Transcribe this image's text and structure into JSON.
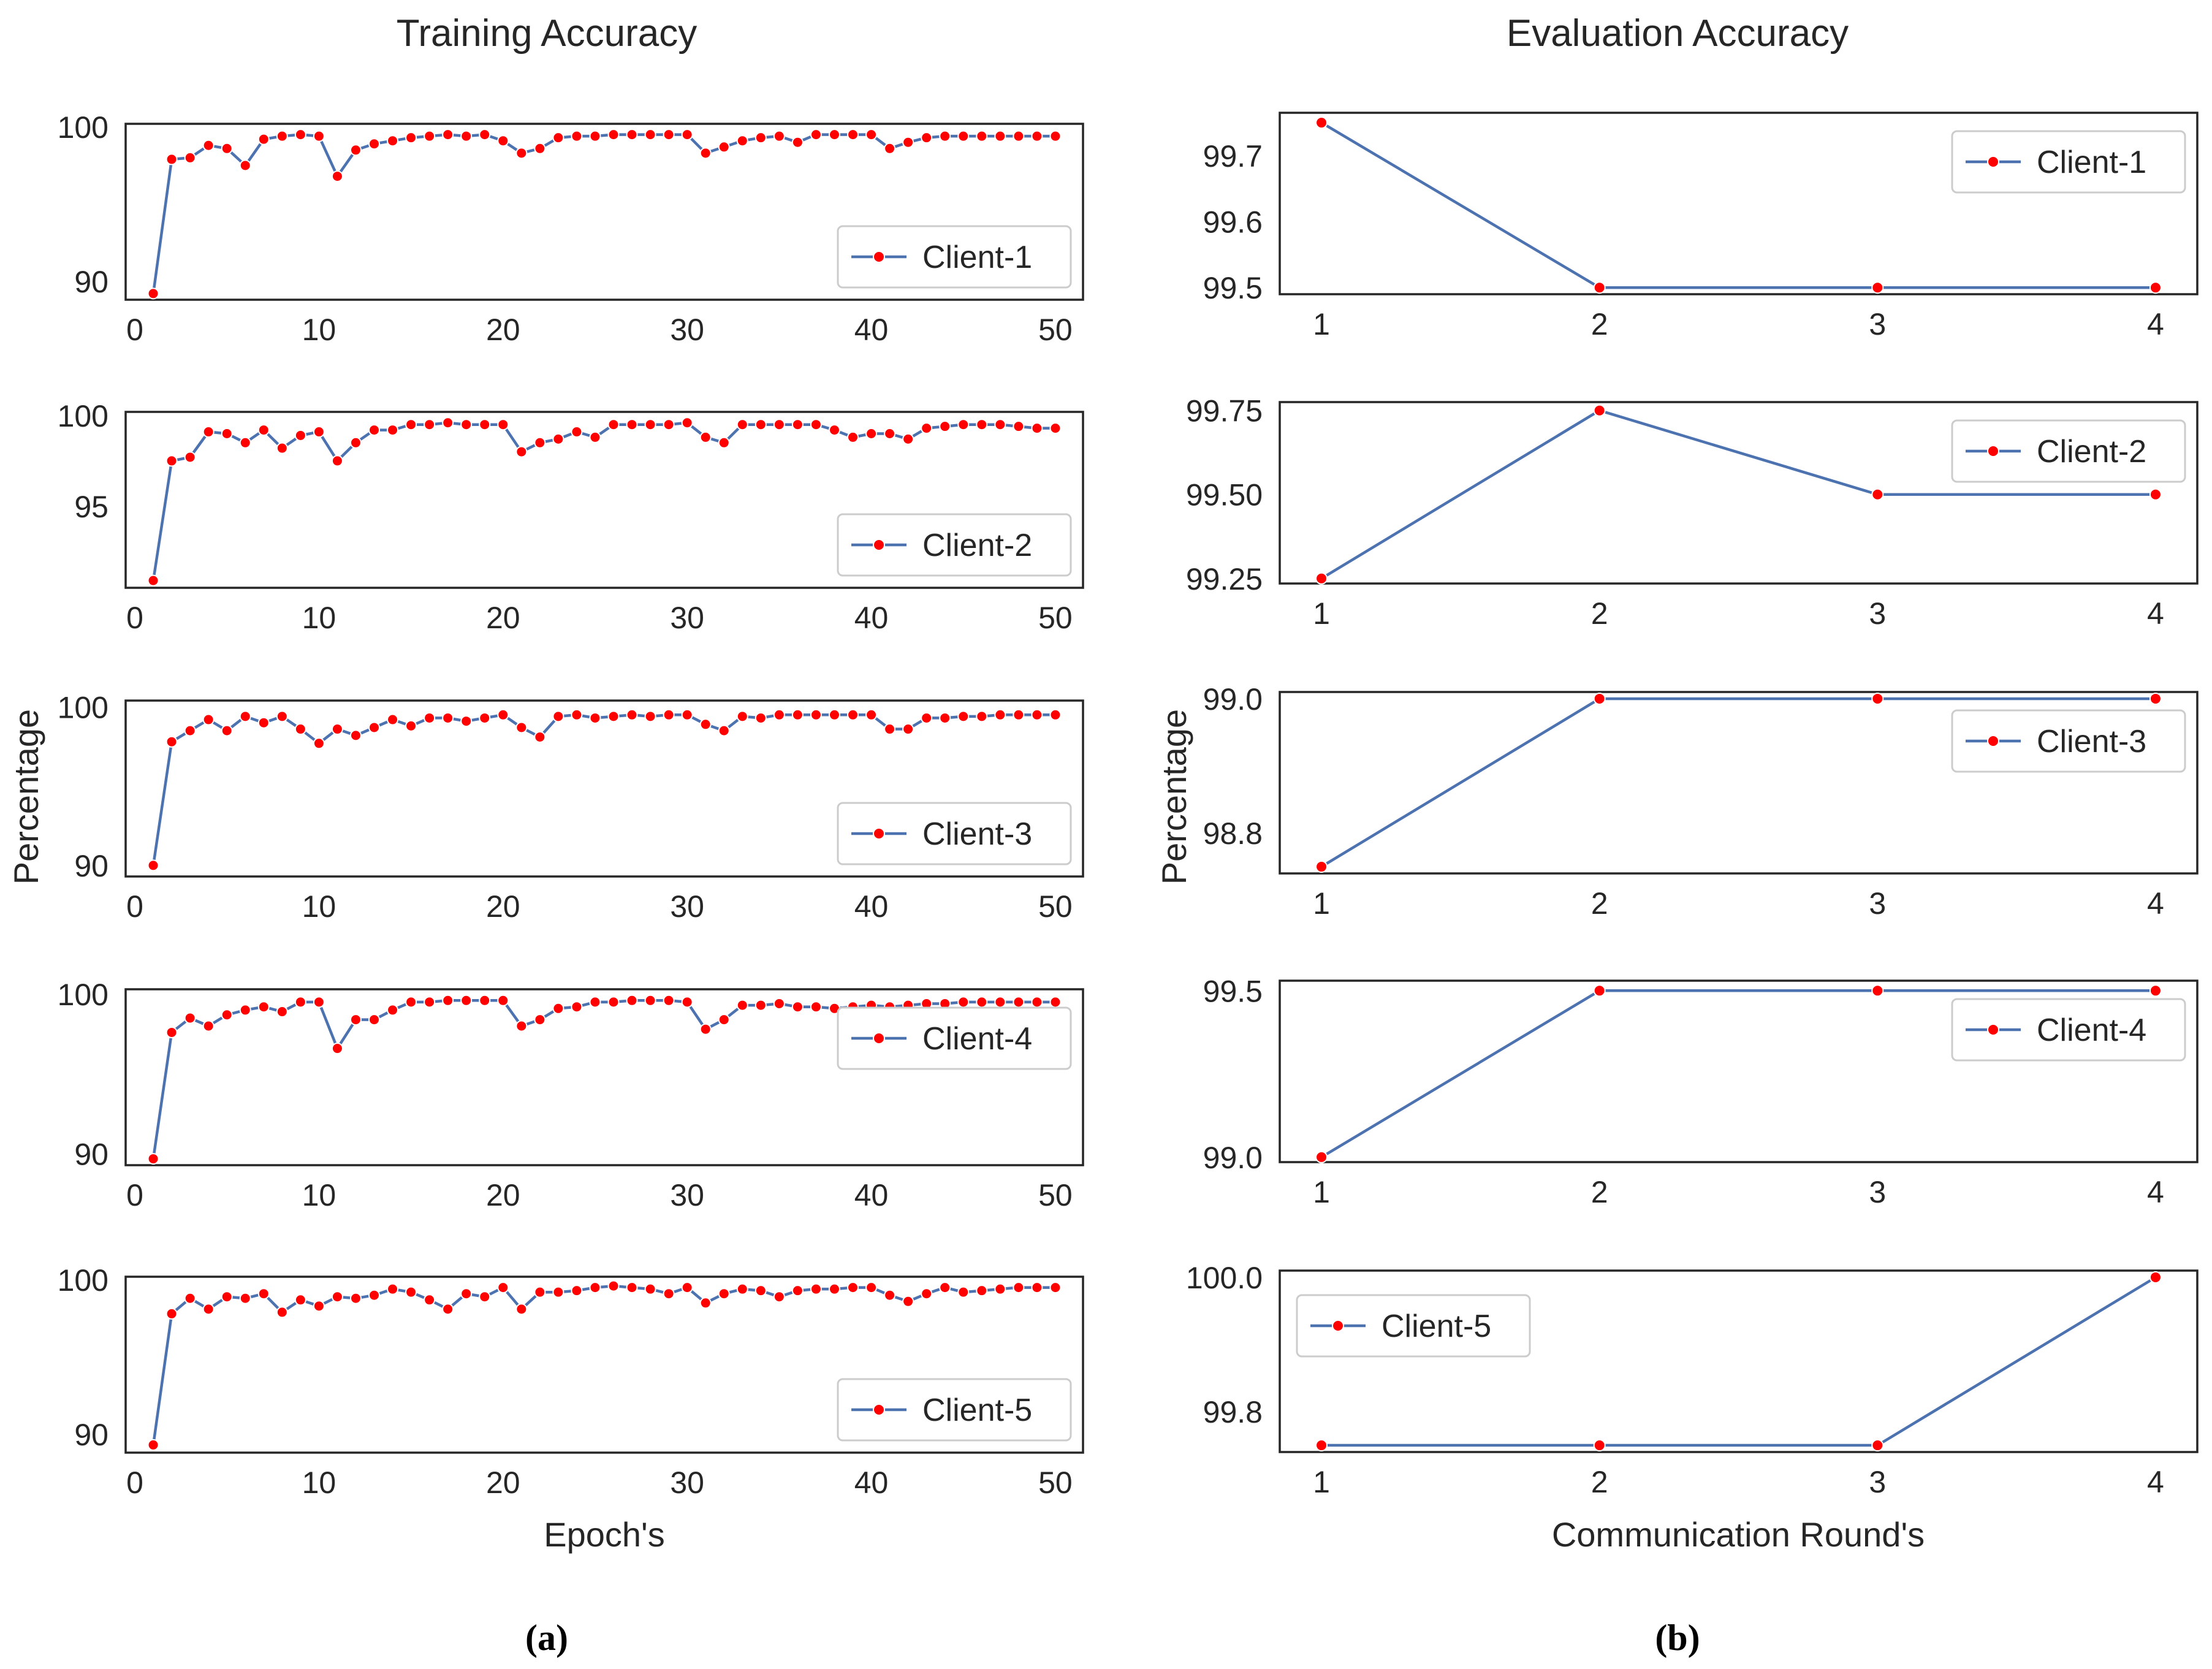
{
  "panel_labels": [
    "(a)",
    "(b)"
  ],
  "colors": {
    "line": "#4c72b0",
    "marker": "#ff0000",
    "frame": "#262626",
    "legend_border": "#cccccc"
  },
  "chart_data": [
    {
      "type": "line",
      "title": "Training Accuracy",
      "xlabel": "Epoch's",
      "ylabel": "Percentage",
      "subplots": [
        {
          "name": "Client-1",
          "x": [
            1,
            2,
            3,
            4,
            5,
            6,
            7,
            8,
            9,
            10,
            11,
            12,
            13,
            14,
            15,
            16,
            17,
            18,
            19,
            20,
            21,
            22,
            23,
            24,
            25,
            26,
            27,
            28,
            29,
            30,
            31,
            32,
            33,
            34,
            35,
            36,
            37,
            38,
            39,
            40,
            41,
            42,
            43,
            44,
            45,
            46,
            47,
            48,
            49,
            50
          ],
          "values": [
            89.2,
            97.9,
            98.0,
            98.8,
            98.6,
            97.5,
            99.2,
            99.4,
            99.5,
            99.4,
            96.8,
            98.5,
            98.9,
            99.1,
            99.3,
            99.4,
            99.5,
            99.4,
            99.5,
            99.1,
            98.3,
            98.6,
            99.3,
            99.4,
            99.4,
            99.5,
            99.5,
            99.5,
            99.5,
            99.5,
            98.3,
            98.7,
            99.1,
            99.3,
            99.4,
            99.0,
            99.5,
            99.5,
            99.5,
            99.5,
            98.6,
            99.0,
            99.3,
            99.4,
            99.4,
            99.4,
            99.4,
            99.4,
            99.4,
            99.4
          ],
          "ylim": [
            88.8,
            100.2
          ],
          "yticks": [
            90,
            100
          ],
          "xticks": [
            0,
            10,
            20,
            30,
            40,
            50
          ],
          "xlim": [
            -0.5,
            51.5
          ],
          "legend": "lower-right"
        },
        {
          "name": "Client-2",
          "x": [
            1,
            2,
            3,
            4,
            5,
            6,
            7,
            8,
            9,
            10,
            11,
            12,
            13,
            14,
            15,
            16,
            17,
            18,
            19,
            20,
            21,
            22,
            23,
            24,
            25,
            26,
            27,
            28,
            29,
            30,
            31,
            32,
            33,
            34,
            35,
            36,
            37,
            38,
            39,
            40,
            41,
            42,
            43,
            44,
            45,
            46,
            47,
            48,
            49,
            50
          ],
          "values": [
            90.9,
            97.5,
            97.7,
            99.1,
            99.0,
            98.5,
            99.2,
            98.2,
            98.9,
            99.1,
            97.5,
            98.5,
            99.2,
            99.2,
            99.5,
            99.5,
            99.6,
            99.5,
            99.5,
            99.5,
            98.0,
            98.5,
            98.7,
            99.1,
            98.8,
            99.5,
            99.5,
            99.5,
            99.5,
            99.6,
            98.8,
            98.5,
            99.5,
            99.5,
            99.5,
            99.5,
            99.5,
            99.2,
            98.8,
            99.0,
            99.0,
            98.7,
            99.3,
            99.4,
            99.5,
            99.5,
            99.5,
            99.4,
            99.3,
            99.3
          ],
          "ylim": [
            90.5,
            100.2
          ],
          "yticks": [
            95,
            100
          ],
          "xticks": [
            0,
            10,
            20,
            30,
            40,
            50
          ],
          "xlim": [
            -0.5,
            51.5
          ],
          "legend": "lower-right"
        },
        {
          "name": "Client-3",
          "x": [
            1,
            2,
            3,
            4,
            5,
            6,
            7,
            8,
            9,
            10,
            11,
            12,
            13,
            14,
            15,
            16,
            17,
            18,
            19,
            20,
            21,
            22,
            23,
            24,
            25,
            26,
            27,
            28,
            29,
            30,
            31,
            32,
            33,
            34,
            35,
            36,
            37,
            38,
            39,
            40,
            41,
            42,
            43,
            44,
            45,
            46,
            47,
            48,
            49,
            50
          ],
          "values": [
            90.0,
            97.8,
            98.5,
            99.2,
            98.5,
            99.4,
            99.0,
            99.4,
            98.6,
            97.7,
            98.6,
            98.2,
            98.7,
            99.2,
            98.8,
            99.3,
            99.3,
            99.1,
            99.3,
            99.5,
            98.7,
            98.1,
            99.4,
            99.5,
            99.3,
            99.4,
            99.5,
            99.4,
            99.5,
            99.5,
            98.9,
            98.5,
            99.4,
            99.3,
            99.5,
            99.5,
            99.5,
            99.5,
            99.5,
            99.5,
            98.6,
            98.6,
            99.3,
            99.3,
            99.4,
            99.4,
            99.5,
            99.5,
            99.5,
            99.5
          ],
          "ylim": [
            89.3,
            100.4
          ],
          "yticks": [
            90,
            100
          ],
          "xticks": [
            0,
            10,
            20,
            30,
            40,
            50
          ],
          "xlim": [
            -0.5,
            51.5
          ],
          "legend": "lower-right"
        },
        {
          "name": "Client-4",
          "x": [
            1,
            2,
            3,
            4,
            5,
            6,
            7,
            8,
            9,
            10,
            11,
            12,
            13,
            14,
            15,
            16,
            17,
            18,
            19,
            20,
            21,
            22,
            23,
            24,
            25,
            26,
            27,
            28,
            29,
            30,
            31,
            32,
            33,
            34,
            35,
            36,
            37,
            38,
            39,
            40,
            41,
            42,
            43,
            44,
            45,
            46,
            47,
            48,
            49,
            50
          ],
          "values": [
            89.7,
            97.6,
            98.5,
            98.0,
            98.7,
            99.0,
            99.2,
            98.9,
            99.5,
            99.5,
            96.6,
            98.4,
            98.4,
            99.0,
            99.5,
            99.5,
            99.6,
            99.6,
            99.6,
            99.6,
            98.0,
            98.4,
            99.1,
            99.2,
            99.5,
            99.5,
            99.6,
            99.6,
            99.6,
            99.5,
            97.8,
            98.4,
            99.3,
            99.3,
            99.4,
            99.2,
            99.2,
            99.1,
            99.2,
            99.3,
            99.2,
            99.3,
            99.4,
            99.4,
            99.5,
            99.5,
            99.5,
            99.5,
            99.5,
            99.5
          ],
          "ylim": [
            89.3,
            100.3
          ],
          "yticks": [
            90,
            100
          ],
          "xticks": [
            0,
            10,
            20,
            30,
            40,
            50
          ],
          "xlim": [
            -0.5,
            51.5
          ],
          "legend": "upper-right"
        },
        {
          "name": "Client-5",
          "x": [
            1,
            2,
            3,
            4,
            5,
            6,
            7,
            8,
            9,
            10,
            11,
            12,
            13,
            14,
            15,
            16,
            17,
            18,
            19,
            20,
            21,
            22,
            23,
            24,
            25,
            26,
            27,
            28,
            29,
            30,
            31,
            32,
            33,
            34,
            35,
            36,
            37,
            38,
            39,
            40,
            41,
            42,
            43,
            44,
            45,
            46,
            47,
            48,
            49,
            50
          ],
          "values": [
            89.3,
            97.8,
            98.8,
            98.1,
            98.9,
            98.8,
            99.1,
            97.9,
            98.7,
            98.3,
            98.9,
            98.8,
            99.0,
            99.4,
            99.2,
            98.7,
            98.1,
            99.1,
            98.9,
            99.5,
            98.1,
            99.2,
            99.2,
            99.3,
            99.5,
            99.6,
            99.5,
            99.4,
            99.1,
            99.5,
            98.5,
            99.1,
            99.4,
            99.3,
            98.9,
            99.3,
            99.4,
            99.4,
            99.5,
            99.5,
            99.0,
            98.6,
            99.1,
            99.5,
            99.2,
            99.3,
            99.4,
            99.5,
            99.5,
            99.5
          ],
          "ylim": [
            88.8,
            100.2
          ],
          "yticks": [
            90,
            100
          ],
          "xticks": [
            0,
            10,
            20,
            30,
            40,
            50
          ],
          "xlim": [
            -0.5,
            51.5
          ],
          "legend": "lower-right"
        }
      ]
    },
    {
      "type": "line",
      "title": "Evaluation Accuracy",
      "xlabel": "Communication Round's",
      "ylabel": "Percentage",
      "subplots": [
        {
          "name": "Client-1",
          "x": [
            1,
            2,
            3,
            4
          ],
          "values": [
            99.75,
            99.5,
            99.5,
            99.5
          ],
          "ylim": [
            99.49,
            99.765
          ],
          "yticks": [
            99.5,
            99.6,
            99.7
          ],
          "yticklabels": [
            "99.5",
            "99.6",
            "99.7"
          ],
          "xticks": [
            1,
            2,
            3,
            4
          ],
          "xlim": [
            0.85,
            4.15
          ],
          "legend": "upper-right"
        },
        {
          "name": "Client-2",
          "x": [
            1,
            2,
            3,
            4
          ],
          "values": [
            99.25,
            99.75,
            99.5,
            99.5
          ],
          "ylim": [
            99.235,
            99.775
          ],
          "yticks": [
            99.25,
            99.5,
            99.75
          ],
          "yticklabels": [
            "99.25",
            "99.50",
            "99.75"
          ],
          "xticks": [
            1,
            2,
            3,
            4
          ],
          "xlim": [
            0.85,
            4.15
          ],
          "legend": "upper-right"
        },
        {
          "name": "Client-3",
          "x": [
            1,
            2,
            3,
            4
          ],
          "values": [
            98.75,
            99.0,
            99.0,
            99.0
          ],
          "ylim": [
            98.74,
            99.01
          ],
          "yticks": [
            98.8,
            99.0
          ],
          "yticklabels": [
            "98.8",
            "99.0"
          ],
          "xticks": [
            1,
            2,
            3,
            4
          ],
          "xlim": [
            0.85,
            4.15
          ],
          "legend": "upper-right"
        },
        {
          "name": "Client-4",
          "x": [
            1,
            2,
            3,
            4
          ],
          "values": [
            99.0,
            99.5,
            99.5,
            99.5
          ],
          "ylim": [
            98.985,
            99.53
          ],
          "yticks": [
            99.0,
            99.5
          ],
          "yticklabels": [
            "99.0",
            "99.5"
          ],
          "xticks": [
            1,
            2,
            3,
            4
          ],
          "xlim": [
            0.85,
            4.15
          ],
          "legend": "upper-right"
        },
        {
          "name": "Client-5",
          "x": [
            1,
            2,
            3,
            4
          ],
          "values": [
            99.75,
            99.75,
            99.75,
            100.0
          ],
          "ylim": [
            99.74,
            100.01
          ],
          "yticks": [
            99.8,
            100.0
          ],
          "yticklabels": [
            "99.8",
            "100.0"
          ],
          "xticks": [
            1,
            2,
            3,
            4
          ],
          "xlim": [
            0.85,
            4.15
          ],
          "legend": "upper-left"
        }
      ]
    }
  ]
}
